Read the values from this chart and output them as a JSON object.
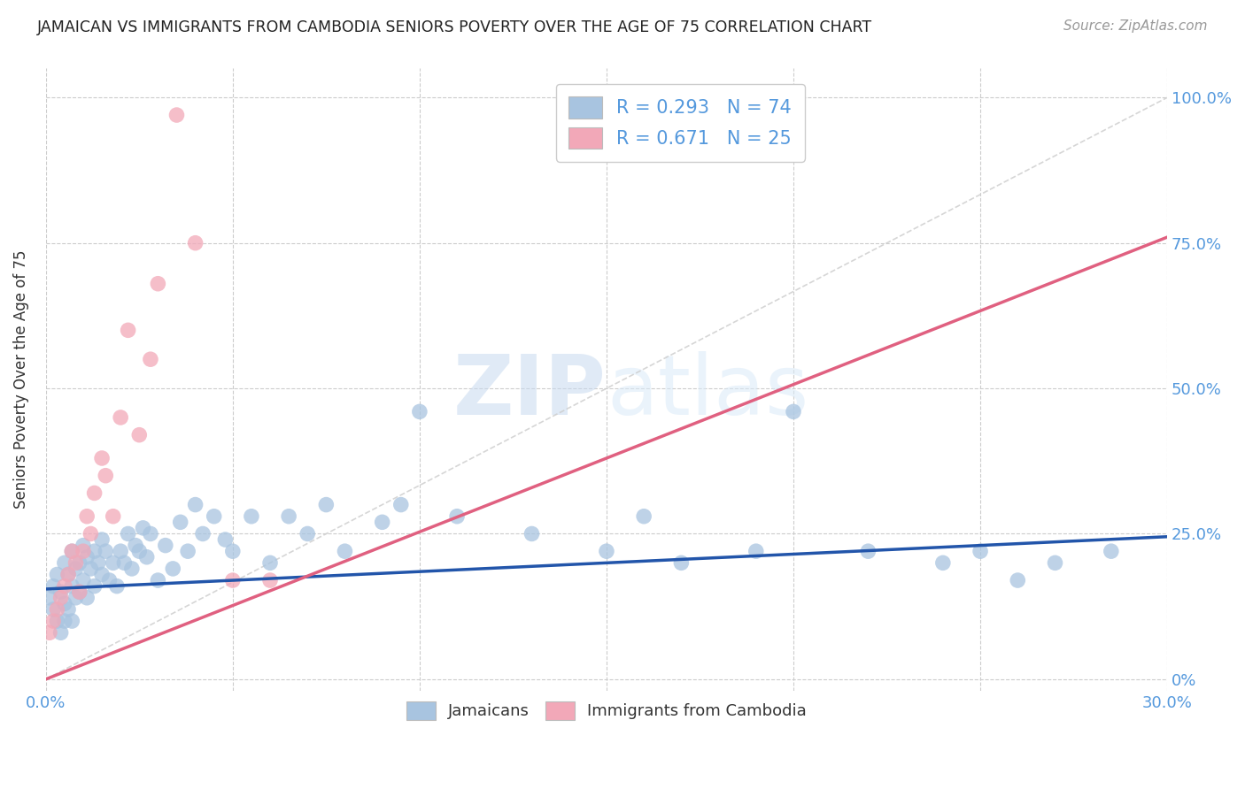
{
  "title": "JAMAICAN VS IMMIGRANTS FROM CAMBODIA SENIORS POVERTY OVER THE AGE OF 75 CORRELATION CHART",
  "source": "Source: ZipAtlas.com",
  "ylabel": "Seniors Poverty Over the Age of 75",
  "ytick_labels_right": [
    "0%",
    "25.0%",
    "50.0%",
    "75.0%",
    "100.0%"
  ],
  "ytick_values": [
    0.0,
    0.25,
    0.5,
    0.75,
    1.0
  ],
  "xlim": [
    0.0,
    0.3
  ],
  "ylim": [
    -0.02,
    1.05
  ],
  "legend_label_1": "Jamaicans",
  "legend_label_2": "Immigrants from Cambodia",
  "R1": 0.293,
  "N1": 74,
  "R2": 0.671,
  "N2": 25,
  "color_blue": "#a8c4e0",
  "color_pink": "#f2a8b8",
  "line_color_blue": "#2255aa",
  "line_color_pink": "#e06080",
  "diag_color": "#cccccc",
  "background_color": "#ffffff",
  "grid_color": "#cccccc",
  "watermark_color": "#dce8f5",
  "title_color": "#222222",
  "axis_label_color": "#5599dd",
  "blue_line_x": [
    0.0,
    0.3
  ],
  "blue_line_y": [
    0.155,
    0.245
  ],
  "pink_line_x": [
    0.0,
    0.3
  ],
  "pink_line_y": [
    0.0,
    0.76
  ],
  "diag_line_x": [
    0.0,
    0.3
  ],
  "diag_line_y": [
    0.0,
    1.0
  ],
  "jamaicans_x": [
    0.001,
    0.002,
    0.002,
    0.003,
    0.003,
    0.004,
    0.004,
    0.005,
    0.005,
    0.005,
    0.006,
    0.006,
    0.007,
    0.007,
    0.007,
    0.008,
    0.008,
    0.009,
    0.009,
    0.01,
    0.01,
    0.011,
    0.011,
    0.012,
    0.013,
    0.013,
    0.014,
    0.015,
    0.015,
    0.016,
    0.017,
    0.018,
    0.019,
    0.02,
    0.021,
    0.022,
    0.023,
    0.024,
    0.025,
    0.026,
    0.027,
    0.028,
    0.03,
    0.032,
    0.034,
    0.036,
    0.038,
    0.04,
    0.042,
    0.045,
    0.048,
    0.05,
    0.055,
    0.06,
    0.065,
    0.07,
    0.075,
    0.08,
    0.09,
    0.095,
    0.1,
    0.11,
    0.13,
    0.15,
    0.16,
    0.17,
    0.19,
    0.2,
    0.22,
    0.24,
    0.25,
    0.26,
    0.27,
    0.285
  ],
  "jamaicans_y": [
    0.14,
    0.16,
    0.12,
    0.18,
    0.1,
    0.15,
    0.08,
    0.2,
    0.13,
    0.1,
    0.18,
    0.12,
    0.22,
    0.16,
    0.1,
    0.19,
    0.14,
    0.2,
    0.15,
    0.23,
    0.17,
    0.21,
    0.14,
    0.19,
    0.22,
    0.16,
    0.2,
    0.24,
    0.18,
    0.22,
    0.17,
    0.2,
    0.16,
    0.22,
    0.2,
    0.25,
    0.19,
    0.23,
    0.22,
    0.26,
    0.21,
    0.25,
    0.17,
    0.23,
    0.19,
    0.27,
    0.22,
    0.3,
    0.25,
    0.28,
    0.24,
    0.22,
    0.28,
    0.2,
    0.28,
    0.25,
    0.3,
    0.22,
    0.27,
    0.3,
    0.46,
    0.28,
    0.25,
    0.22,
    0.28,
    0.2,
    0.22,
    0.46,
    0.22,
    0.2,
    0.22,
    0.17,
    0.2,
    0.22
  ],
  "cambodia_x": [
    0.001,
    0.002,
    0.003,
    0.004,
    0.005,
    0.006,
    0.007,
    0.008,
    0.009,
    0.01,
    0.011,
    0.012,
    0.013,
    0.015,
    0.016,
    0.018,
    0.02,
    0.022,
    0.025,
    0.028,
    0.03,
    0.035,
    0.04,
    0.05,
    0.06
  ],
  "cambodia_y": [
    0.08,
    0.1,
    0.12,
    0.14,
    0.16,
    0.18,
    0.22,
    0.2,
    0.15,
    0.22,
    0.28,
    0.25,
    0.32,
    0.38,
    0.35,
    0.28,
    0.45,
    0.6,
    0.42,
    0.55,
    0.68,
    0.97,
    0.75,
    0.17,
    0.17
  ]
}
